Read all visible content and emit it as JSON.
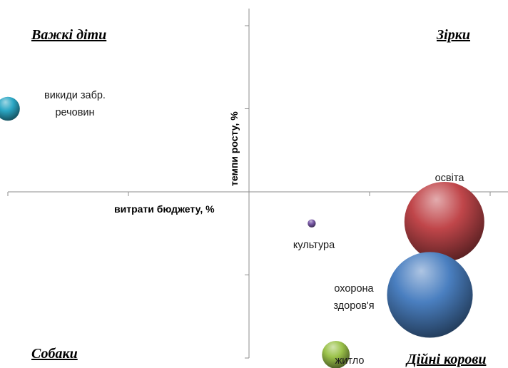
{
  "chart_data": {
    "type": "bubble",
    "xlabel": "витрати бюджету, %",
    "ylabel": "темпи росту, %",
    "quadrants": {
      "top_left": "Важкі діти",
      "top_right": "Зірки",
      "bottom_left": "Собаки",
      "bottom_right": "Дійні корови"
    },
    "series": [
      {
        "label_lines": [
          "викиди забр.",
          "речовин"
        ],
        "x": -1.0,
        "y": 0.5,
        "size": 9,
        "color": "#2aa6c4"
      },
      {
        "label_lines": [
          "освіта"
        ],
        "x": 0.81,
        "y": -0.18,
        "size": 100,
        "color": "#c0464a"
      },
      {
        "label_lines": [
          "культура"
        ],
        "x": 0.26,
        "y": -0.19,
        "size": 1,
        "color": "#7a5aa8"
      },
      {
        "label_lines": [
          "охорона",
          "здоров'я"
        ],
        "x": 0.75,
        "y": -0.62,
        "size": 115,
        "color": "#4a7fc0"
      },
      {
        "label_lines": [
          "житло"
        ],
        "x": 0.36,
        "y": -0.98,
        "size": 12,
        "color": "#9bc24a"
      }
    ],
    "xlim": [
      -1,
      1
    ],
    "ylim": [
      -1,
      1
    ]
  }
}
